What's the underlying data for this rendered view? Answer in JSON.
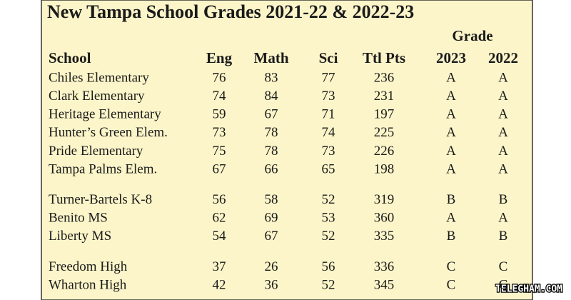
{
  "title": "New Tampa School Grades 2021-22 & 2022-23",
  "table": {
    "group_header": "Grade",
    "columns": [
      "School",
      "Eng",
      "Math",
      "Sci",
      "Ttl Pts",
      "2023",
      "2022"
    ],
    "groups": [
      [
        [
          "Chiles Elementary",
          "76",
          "83",
          "77",
          "236",
          "A",
          "A"
        ],
        [
          "Clark Elementary",
          "74",
          "84",
          "73",
          "231",
          "A",
          "A"
        ],
        [
          "Heritage Elementary",
          "59",
          "67",
          "71",
          "197",
          "A",
          "A"
        ],
        [
          "Hunter’s Green Elem.",
          "73",
          "78",
          "74",
          "225",
          "A",
          "A"
        ],
        [
          "Pride Elementary",
          "75",
          "78",
          "73",
          "226",
          "A",
          "A"
        ],
        [
          "Tampa Palms Elem.",
          "67",
          "66",
          "65",
          "198",
          "A",
          "A"
        ]
      ],
      [
        [
          "Turner-Bartels K-8",
          "56",
          "58",
          "52",
          "319",
          "B",
          "B"
        ],
        [
          "Benito MS",
          "62",
          "69",
          "53",
          "360",
          "A",
          "A"
        ],
        [
          "Liberty MS",
          "54",
          "67",
          "52",
          "335",
          "B",
          "B"
        ]
      ],
      [
        [
          "Freedom High",
          "37",
          "26",
          "56",
          "336",
          "C",
          "C"
        ],
        [
          "Wharton High",
          "42",
          "36",
          "52",
          "345",
          "C",
          "C"
        ]
      ]
    ]
  },
  "watermark": "TELEGHAM.COM"
}
